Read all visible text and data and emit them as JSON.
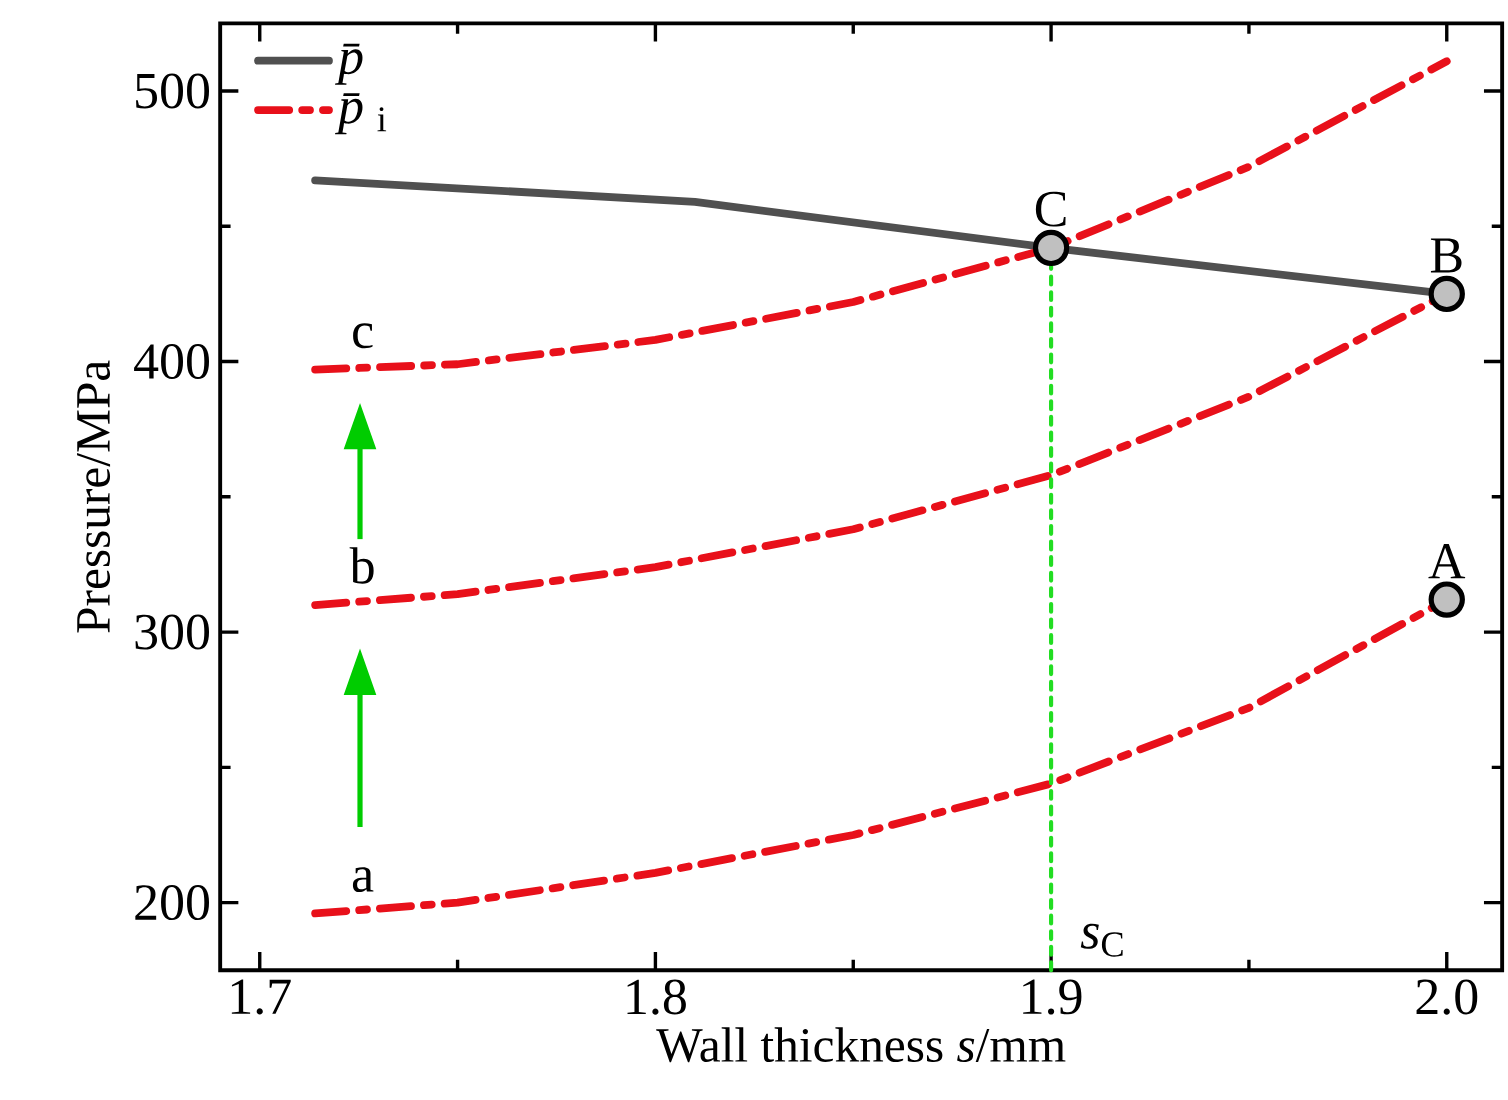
{
  "chart_data": {
    "type": "line",
    "xlabel": "Wall thickness *s*/mm",
    "ylabel": "Pressure/MPa",
    "xlim": [
      1.69,
      2.014
    ],
    "ylim": [
      175,
      525
    ],
    "xticks": [
      1.7,
      1.8,
      1.9,
      {
        "value": 2.0,
        "label": "2.0"
      }
    ],
    "yticks": [
      200,
      300,
      400,
      500
    ],
    "legend": "top left",
    "grid": false,
    "series": [
      {
        "name": "*p̄*",
        "color": "#505050",
        "line_style": "solid",
        "x": [
          1.714,
          1.81,
          1.9,
          2.0
        ],
        "values": [
          467,
          459,
          442,
          425
        ]
      },
      {
        "name": "*p̄*$_{i}$",
        "color": "#e8101a",
        "line_style": "dashdot",
        "x": [
          1.714,
          1.75,
          1.8,
          1.85,
          1.9,
          1.95,
          2.0
        ],
        "values": [
          196,
          200,
          211,
          225,
          244,
          272,
          312
        ]
      },
      {
        "color": "#e8101a",
        "line_style": "dashdot",
        "x": [
          1.714,
          1.75,
          1.8,
          1.85,
          1.9,
          1.95,
          2.0
        ],
        "values": [
          310,
          314,
          324,
          338,
          358,
          387,
          425
        ]
      },
      {
        "color": "#e8101a",
        "line_style": "dashdot",
        "x": [
          1.714,
          1.75,
          1.8,
          1.85,
          1.9,
          1.95,
          2.0
        ],
        "values": [
          397,
          399,
          408,
          422,
          442,
          472,
          511
        ]
      },
      {
        "color": "#22dd22",
        "line_style": "dotted",
        "x": [
          1.9,
          1.9
        ],
        "values": [
          175,
          442
        ]
      },
      {
        "type": "scatter",
        "color": "#c0c0c0",
        "marker": "circle",
        "x": [
          2.0,
          2.0,
          1.9
        ],
        "values": [
          312,
          425,
          442
        ]
      }
    ],
    "annotations": [
      {
        "text": "A",
        "x": 2.0,
        "y": 312
      },
      {
        "text": "B",
        "x": 2.0,
        "y": 425
      },
      {
        "text": "C",
        "x": 1.9,
        "y": 442
      },
      {
        "text": "a",
        "x": 1.726,
        "y": 196
      },
      {
        "text": "b",
        "x": 1.726,
        "y": 310
      },
      {
        "text": "c",
        "x": 1.726,
        "y": 397
      },
      {
        "text": "*s*$_{C}$",
        "x": 1.9,
        "y": 175
      }
    ]
  }
}
